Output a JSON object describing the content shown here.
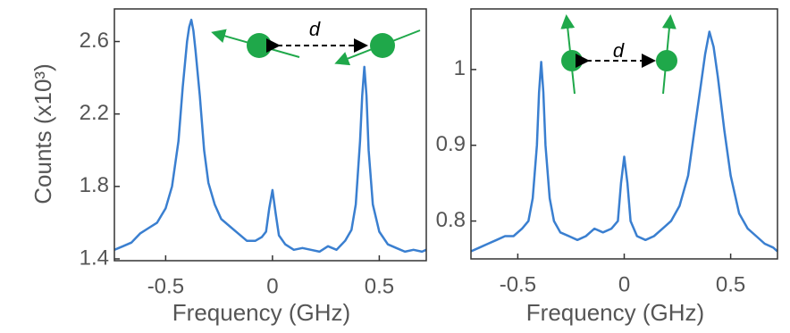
{
  "chart_data": [
    {
      "type": "line",
      "y_label": "Counts (x10³)",
      "x_label": "Frequency (GHz)",
      "annotations": [
        "d"
      ],
      "xlim": [
        -0.74,
        0.72
      ],
      "xticks": [
        -0.5,
        0,
        0.5
      ],
      "ylim": [
        1.39,
        2.78
      ],
      "yticks": [
        1.4,
        1.8,
        2.2,
        2.6
      ],
      "series": [
        {
          "color": "#3a7fd0",
          "x": [
            -0.74,
            -0.7,
            -0.66,
            -0.62,
            -0.58,
            -0.54,
            -0.5,
            -0.47,
            -0.44,
            -0.42,
            -0.4,
            -0.39,
            -0.38,
            -0.37,
            -0.36,
            -0.34,
            -0.32,
            -0.3,
            -0.27,
            -0.24,
            -0.2,
            -0.16,
            -0.12,
            -0.08,
            -0.05,
            -0.03,
            -0.015,
            0,
            0.015,
            0.03,
            0.06,
            0.1,
            0.14,
            0.18,
            0.22,
            0.26,
            0.3,
            0.34,
            0.37,
            0.39,
            0.41,
            0.42,
            0.43,
            0.44,
            0.45,
            0.47,
            0.5,
            0.54,
            0.58,
            0.62,
            0.66,
            0.7,
            0.72
          ],
          "values": [
            1.45,
            1.47,
            1.49,
            1.54,
            1.57,
            1.6,
            1.68,
            1.8,
            2.05,
            2.35,
            2.6,
            2.68,
            2.72,
            2.66,
            2.55,
            2.3,
            2.0,
            1.82,
            1.7,
            1.62,
            1.58,
            1.54,
            1.5,
            1.5,
            1.52,
            1.55,
            1.68,
            1.78,
            1.65,
            1.53,
            1.48,
            1.45,
            1.46,
            1.45,
            1.44,
            1.47,
            1.45,
            1.5,
            1.56,
            1.7,
            2.05,
            2.3,
            2.46,
            2.3,
            2.0,
            1.7,
            1.55,
            1.48,
            1.46,
            1.44,
            1.45,
            1.44,
            1.45
          ]
        }
      ]
    },
    {
      "type": "line",
      "x_label": "Frequency (GHz)",
      "annotations": [
        "d"
      ],
      "xlim": [
        -0.72,
        0.72
      ],
      "xticks": [
        -0.5,
        0,
        0.5
      ],
      "ylim": [
        0.75,
        1.08
      ],
      "yticks": [
        0.8,
        0.9,
        1
      ],
      "series": [
        {
          "color": "#3a7fd0",
          "x": [
            -0.72,
            -0.68,
            -0.64,
            -0.6,
            -0.56,
            -0.52,
            -0.48,
            -0.45,
            -0.43,
            -0.41,
            -0.4,
            -0.39,
            -0.38,
            -0.37,
            -0.35,
            -0.33,
            -0.3,
            -0.26,
            -0.22,
            -0.18,
            -0.14,
            -0.1,
            -0.06,
            -0.03,
            -0.015,
            0,
            0.015,
            0.03,
            0.06,
            0.1,
            0.14,
            0.18,
            0.22,
            0.26,
            0.3,
            0.33,
            0.36,
            0.38,
            0.4,
            0.42,
            0.44,
            0.47,
            0.5,
            0.54,
            0.58,
            0.62,
            0.66,
            0.7,
            0.72
          ],
          "values": [
            0.76,
            0.765,
            0.77,
            0.775,
            0.78,
            0.78,
            0.79,
            0.8,
            0.83,
            0.9,
            0.97,
            1.01,
            0.97,
            0.9,
            0.83,
            0.8,
            0.785,
            0.78,
            0.775,
            0.78,
            0.79,
            0.785,
            0.79,
            0.8,
            0.85,
            0.885,
            0.85,
            0.8,
            0.78,
            0.775,
            0.78,
            0.79,
            0.8,
            0.82,
            0.86,
            0.92,
            0.98,
            1.02,
            1.05,
            1.03,
            0.99,
            0.92,
            0.86,
            0.81,
            0.79,
            0.78,
            0.77,
            0.765,
            0.76
          ]
        }
      ]
    }
  ]
}
